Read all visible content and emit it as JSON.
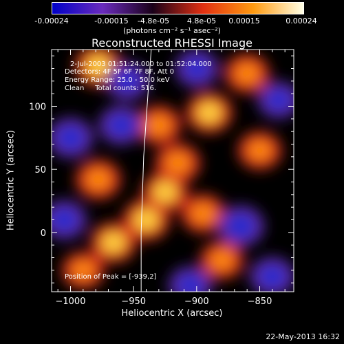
{
  "colorbar": {
    "ticks": [
      "-0.00024",
      "-0.00015",
      "-4.8e-05",
      "4.8e-05",
      "0.00015",
      "0.00024"
    ],
    "unit": "(photons cm⁻² s⁻¹ asec⁻²)",
    "colors": [
      "#0000c8",
      "#6a2bbd",
      "#1a0018",
      "#e23012",
      "#ff9a10",
      "#ffffe6"
    ]
  },
  "title": "Reconstructed RHESSI Image",
  "annotations": {
    "time_range": "2-Jul-2003 01:51:24.000 to 01:52:04.000",
    "detectors": "Detectors: 4F 5F 6F 7F 8F, Att 0",
    "energy": "Energy Range: 25.0 - 50.0 keV",
    "method": "Clean     Total counts: 516.",
    "peak": "Position of Peak = [-939,2]"
  },
  "chart_data": {
    "type": "heatmap",
    "title": "Reconstructed RHESSI Image",
    "xlabel": "Heliocentric X (arcsec)",
    "ylabel": "Heliocentric Y (arcsec)",
    "xlim": [
      -1015,
      -823
    ],
    "ylim": [
      -47,
      145
    ],
    "xticks": [
      -1000,
      -950,
      -900,
      -850
    ],
    "yticks": [
      0,
      50,
      100
    ],
    "xtick_labels": [
      "−1000",
      "−950",
      "−900",
      "−850"
    ],
    "ytick_labels": [
      "0",
      "50",
      "100"
    ],
    "limb_curve": [
      [
        -944,
        -47
      ],
      [
        -944,
        0
      ],
      [
        -943,
        30
      ],
      [
        -942,
        60
      ],
      [
        -940,
        90
      ],
      [
        -938,
        118
      ],
      [
        -936,
        145
      ]
    ],
    "blobs": [
      {
        "x": -978,
        "y": 132,
        "v": 1.0
      },
      {
        "x": -978,
        "y": 42,
        "v": 0.85
      },
      {
        "x": -966,
        "y": -8,
        "v": 0.9
      },
      {
        "x": -940,
        "y": 10,
        "v": 1.0
      },
      {
        "x": -925,
        "y": 32,
        "v": 0.9
      },
      {
        "x": -915,
        "y": 55,
        "v": 0.85
      },
      {
        "x": -930,
        "y": 85,
        "v": 0.8
      },
      {
        "x": -890,
        "y": 95,
        "v": 0.95
      },
      {
        "x": -860,
        "y": 126,
        "v": 0.8
      },
      {
        "x": -850,
        "y": 65,
        "v": 0.7
      },
      {
        "x": -895,
        "y": 15,
        "v": 0.75
      },
      {
        "x": -880,
        "y": -22,
        "v": 0.7
      },
      {
        "x": -990,
        "y": -30,
        "v": 0.6
      },
      {
        "x": -1000,
        "y": 75,
        "v": -0.9
      },
      {
        "x": -960,
        "y": 85,
        "v": -0.8
      },
      {
        "x": -865,
        "y": 5,
        "v": -1.0
      },
      {
        "x": -840,
        "y": -35,
        "v": -0.8
      },
      {
        "x": -1005,
        "y": 10,
        "v": -0.8
      },
      {
        "x": -955,
        "y": 120,
        "v": -0.7
      },
      {
        "x": -900,
        "y": 130,
        "v": -0.7
      },
      {
        "x": -905,
        "y": -42,
        "v": -0.7
      },
      {
        "x": -835,
        "y": 105,
        "v": -0.6
      }
    ]
  },
  "footer": {
    "date": "22-May-2013 16:32"
  }
}
